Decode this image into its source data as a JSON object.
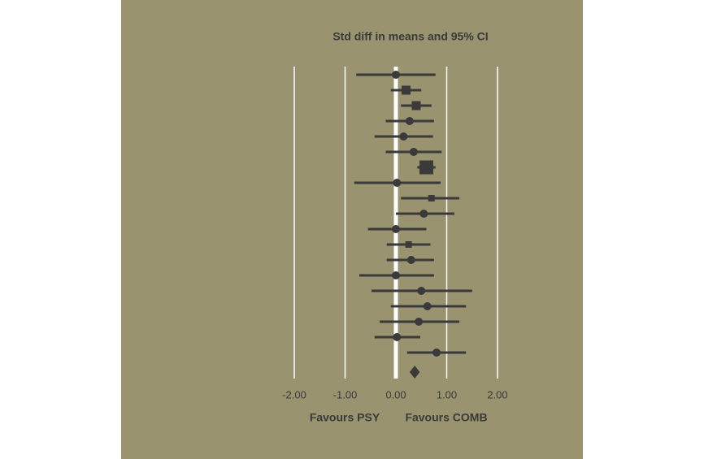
{
  "chart_data": {
    "type": "forest",
    "title": "Std diff in means and 95% CI",
    "values": [
      0.0,
      0.2,
      0.4,
      0.27,
      0.15,
      0.35,
      0.6,
      0.02,
      0.7,
      0.55,
      0.0,
      0.25,
      0.3,
      0.0,
      0.5,
      0.62,
      0.45,
      0.02,
      0.8
    ],
    "lower": [
      -0.78,
      -0.1,
      0.1,
      -0.2,
      -0.42,
      -0.2,
      0.42,
      -0.82,
      0.1,
      0.0,
      -0.55,
      -0.18,
      -0.18,
      -0.72,
      -0.48,
      -0.1,
      -0.32,
      -0.42,
      0.22
    ],
    "upper": [
      0.78,
      0.5,
      0.7,
      0.75,
      0.73,
      0.9,
      0.78,
      0.88,
      1.25,
      1.15,
      0.6,
      0.68,
      0.75,
      0.75,
      1.5,
      1.38,
      1.25,
      0.48,
      1.38
    ],
    "markers": [
      "circle",
      "square",
      "square",
      "circle",
      "circle",
      "circle",
      "square-large",
      "circle",
      "square",
      "circle",
      "circle",
      "square",
      "circle",
      "circle",
      "circle",
      "circle",
      "circle",
      "circle",
      "circle"
    ],
    "summary": {
      "value": 0.37,
      "lower": 0.27,
      "upper": 0.47
    },
    "color": "#3a3a3a",
    "xlim": [
      -2,
      2
    ],
    "xticks": [
      {
        "value": -2,
        "label": "-2.00"
      },
      {
        "value": -1,
        "label": "-1.00"
      },
      {
        "value": 0,
        "label": "0.00"
      },
      {
        "value": 1,
        "label": "1.00"
      },
      {
        "value": 2,
        "label": "2.00"
      }
    ],
    "grid": true,
    "left_label": "Favours PSY",
    "right_label": "Favours COMB"
  }
}
